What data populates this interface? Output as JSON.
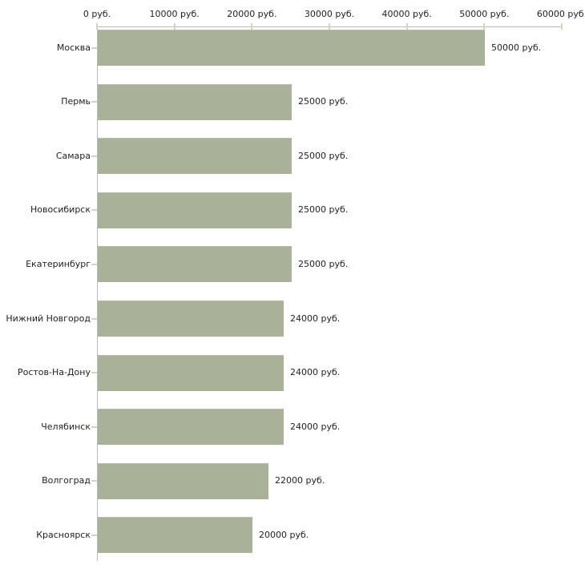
{
  "chart_data": {
    "type": "bar",
    "orientation": "horizontal",
    "title": "",
    "xlabel": "",
    "ylabel": "",
    "unit": "руб.",
    "xlim": [
      0,
      60000
    ],
    "grid": false,
    "legend": false,
    "x_tick_labels": [
      "0 руб.",
      "10000 руб.",
      "20000 руб.",
      "30000 руб.",
      "40000 руб.",
      "50000 руб.",
      "60000 руб."
    ],
    "x_tick_values": [
      0,
      10000,
      20000,
      30000,
      40000,
      50000,
      60000
    ],
    "categories": [
      "Москва",
      "Пермь",
      "Самара",
      "Новосибирск",
      "Екатеринбург",
      "Нижний Новгород",
      "Ростов-На-Дону",
      "Челябинск",
      "Волгоград",
      "Красноярск"
    ],
    "values": [
      50000,
      25000,
      25000,
      25000,
      25000,
      24000,
      24000,
      24000,
      22000,
      20000
    ],
    "value_labels": [
      "50000 руб.",
      "25000 руб.",
      "25000 руб.",
      "25000 руб.",
      "25000 руб.",
      "24000 руб.",
      "24000 руб.",
      "24000 руб.",
      "22000 руб.",
      "20000 руб."
    ],
    "colors": {
      "bar": "#aab199",
      "bar_edge": "#b7bda7",
      "axis": "#bababa",
      "tick": "#d3d4be",
      "text": "#1f1f1f",
      "background": "#ffffff"
    }
  }
}
